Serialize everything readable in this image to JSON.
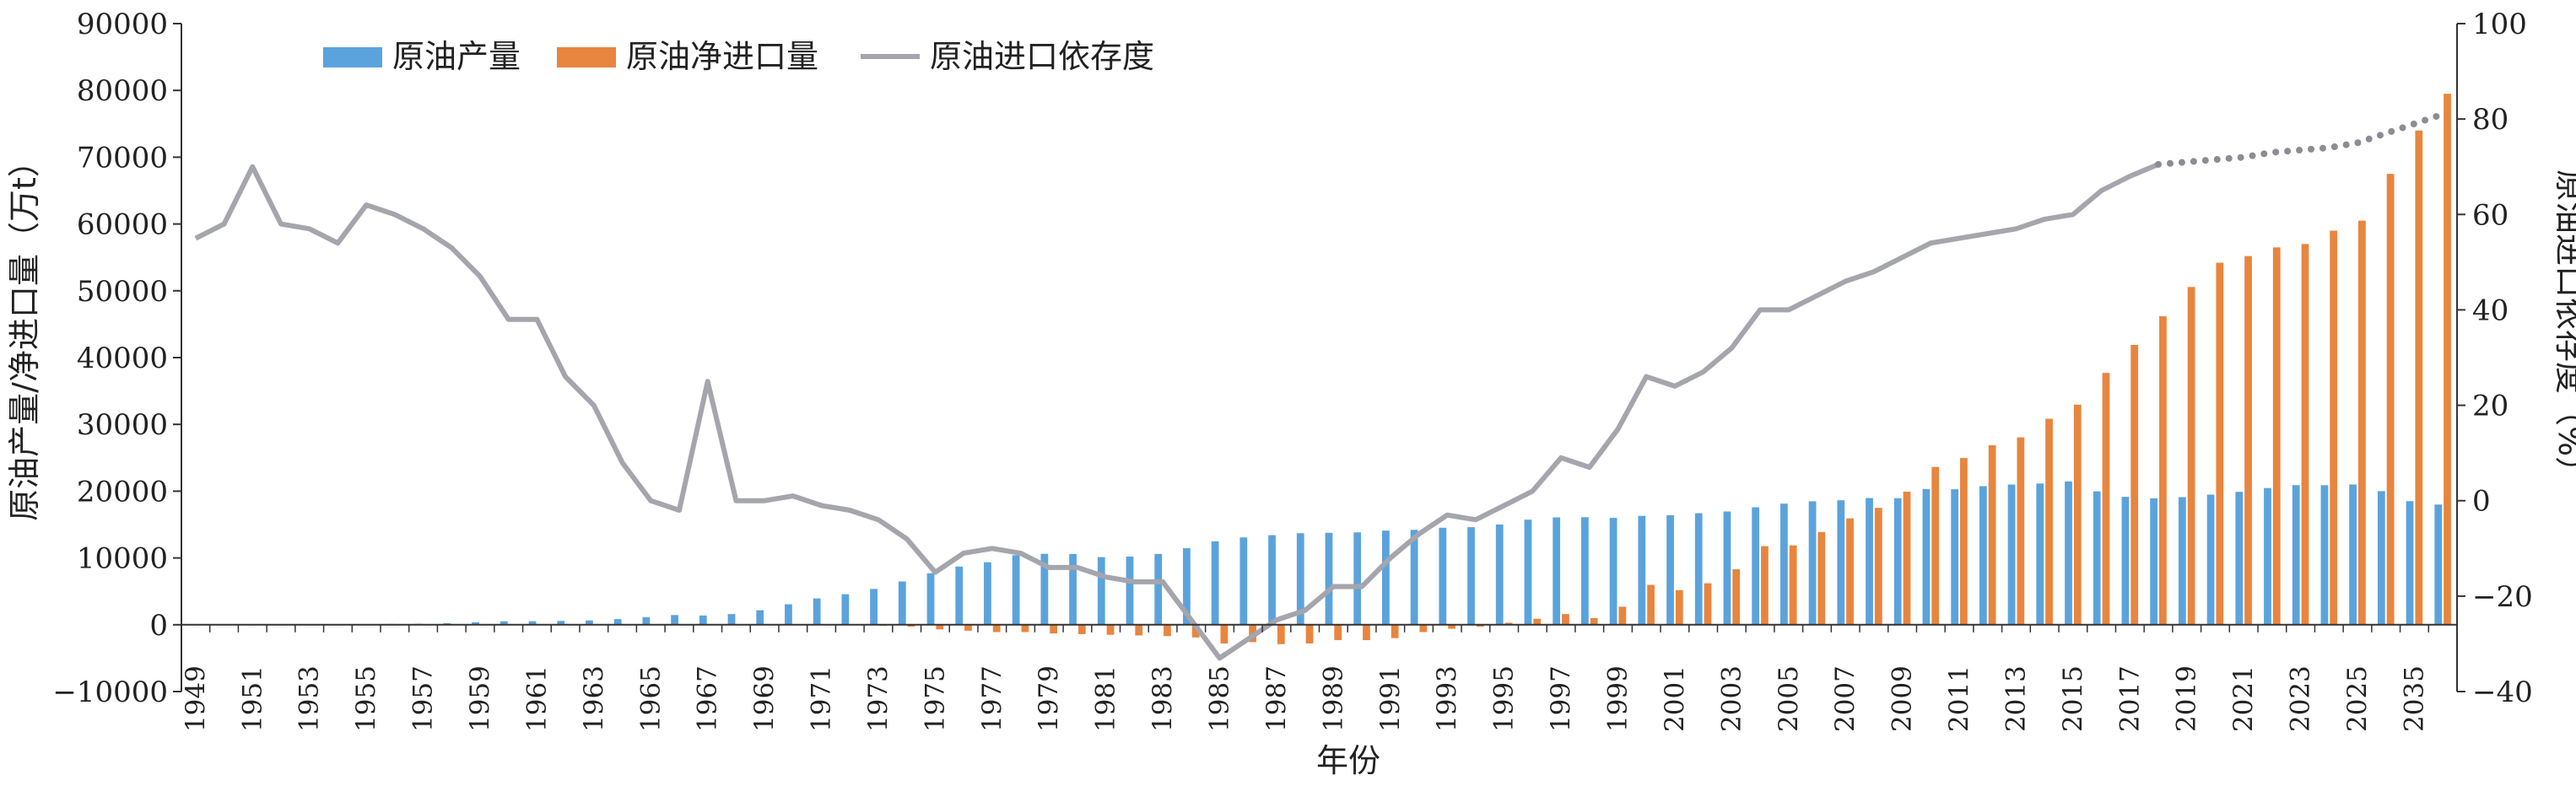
{
  "chart_data": {
    "type": "bar+line",
    "title": "",
    "xlabel": "年份",
    "ylabel_left": "原油产量/净进口量（万t）",
    "ylabel_right": "原油进口依存度（%）",
    "ylim_left": [
      -10000,
      90000
    ],
    "ylim_right": [
      -40,
      100
    ],
    "yticks_left": [
      "−10000",
      "0",
      "10000",
      "20000",
      "30000",
      "40000",
      "50000",
      "60000",
      "70000",
      "80000",
      "90000"
    ],
    "yticks_right": [
      "−40",
      "−20",
      "0",
      "20",
      "40",
      "60",
      "80",
      "100"
    ],
    "legend_position": "top-left",
    "grid": false,
    "categories": [
      "1949",
      "1950",
      "1951",
      "1952",
      "1953",
      "1954",
      "1955",
      "1956",
      "1957",
      "1958",
      "1959",
      "1960",
      "1961",
      "1962",
      "1963",
      "1964",
      "1965",
      "1966",
      "1967",
      "1968",
      "1969",
      "1970",
      "1971",
      "1972",
      "1973",
      "1974",
      "1975",
      "1976",
      "1977",
      "1978",
      "1979",
      "1980",
      "1981",
      "1982",
      "1983",
      "1984",
      "1985",
      "1986",
      "1987",
      "1988",
      "1989",
      "1990",
      "1991",
      "1992",
      "1993",
      "1994",
      "1995",
      "1996",
      "1997",
      "1998",
      "1999",
      "2000",
      "2001",
      "2002",
      "2003",
      "2004",
      "2005",
      "2006",
      "2007",
      "2008",
      "2009",
      "2010",
      "2011",
      "2012",
      "2013",
      "2014",
      "2015",
      "2016",
      "2017",
      "2018",
      "2019",
      "2020",
      "2021",
      "2022",
      "2023",
      "2024",
      "2025",
      "2030",
      "2035",
      "2040"
    ],
    "xtick_labels": [
      "1949",
      "1951",
      "1953",
      "1955",
      "1957",
      "1959",
      "1961",
      "1963",
      "1965",
      "1967",
      "1969",
      "1971",
      "1973",
      "1975",
      "1977",
      "1979",
      "1981",
      "1983",
      "1985",
      "1987",
      "1989",
      "1991",
      "1993",
      "1995",
      "1997",
      "1999",
      "2001",
      "2003",
      "2005",
      "2007",
      "2009",
      "2011",
      "2013",
      "2015",
      "2017",
      "2019",
      "2021",
      "2023",
      "2025",
      "2035"
    ],
    "series": [
      {
        "name": "原油产量",
        "kind": "bar",
        "axis": "left",
        "color": "#5ba3dc",
        "values": [
          12,
          20,
          31,
          44,
          62,
          79,
          97,
          116,
          146,
          226,
          373,
          520,
          531,
          575,
          648,
          848,
          1131,
          1455,
          1388,
          1599,
          2174,
          3065,
          3941,
          4567,
          5361,
          6485,
          7706,
          8716,
          9364,
          10405,
          10615,
          10595,
          10122,
          10212,
          10607,
          11461,
          12490,
          13069,
          13414,
          13705,
          13764,
          13831,
          14099,
          14210,
          14524,
          14608,
          15005,
          15733,
          16074,
          16100,
          16000,
          16300,
          16396,
          16700,
          16960,
          17587,
          18135,
          18477,
          18632,
          18973,
          18949,
          20301,
          20288,
          20748,
          20992,
          21143,
          21456,
          19969,
          19151,
          18932,
          19101,
          19477,
          19898,
          20472,
          20902,
          20890,
          21000,
          20000,
          18500,
          18000
        ]
      },
      {
        "name": "原油净进口量",
        "kind": "bar",
        "axis": "left",
        "color": "#e8853f",
        "values": [
          10,
          15,
          20,
          25,
          30,
          30,
          35,
          40,
          45,
          50,
          60,
          60,
          60,
          55,
          50,
          40,
          20,
          10,
          5,
          0,
          0,
          0,
          -10,
          -60,
          -150,
          -300,
          -700,
          -900,
          -1100,
          -1100,
          -1300,
          -1400,
          -1500,
          -1600,
          -1700,
          -1900,
          -2800,
          -2600,
          -2900,
          -2800,
          -2300,
          -2300,
          -2000,
          -1100,
          -600,
          -300,
          300,
          900,
          1600,
          1000,
          2700,
          5969,
          5182,
          6209,
          8311,
          11767,
          11875,
          13884,
          15928,
          17497,
          19920,
          23626,
          24958,
          26870,
          28055,
          30840,
          32950,
          37700,
          41900,
          46190,
          50568,
          54200,
          55200,
          56500,
          57000,
          59000,
          60500,
          67500,
          74000,
          79500
        ]
      },
      {
        "name": "原油进口依存度",
        "kind": "line",
        "axis": "right",
        "color": "#a5a5ad",
        "forecast_from": "2018",
        "values": [
          55,
          58,
          70,
          58,
          57,
          54,
          62,
          60,
          57,
          53,
          47,
          38,
          38,
          26,
          20,
          8,
          0,
          -2,
          25,
          0,
          0,
          1,
          -1,
          -2,
          -4,
          -8,
          -15,
          -11,
          -10,
          -11,
          -14,
          -14,
          -16,
          -17,
          -17,
          -25,
          -33,
          -29,
          -25,
          -23,
          -18,
          -18,
          -12,
          -7,
          -3,
          -4,
          -1,
          2,
          9,
          7,
          15,
          26,
          24,
          27,
          32,
          40,
          40,
          43,
          46,
          48,
          51,
          54,
          55,
          56,
          57,
          59,
          60,
          65,
          68,
          70.5,
          71,
          71.5,
          72,
          73,
          73.5,
          74,
          75,
          77,
          79,
          81
        ]
      }
    ]
  }
}
